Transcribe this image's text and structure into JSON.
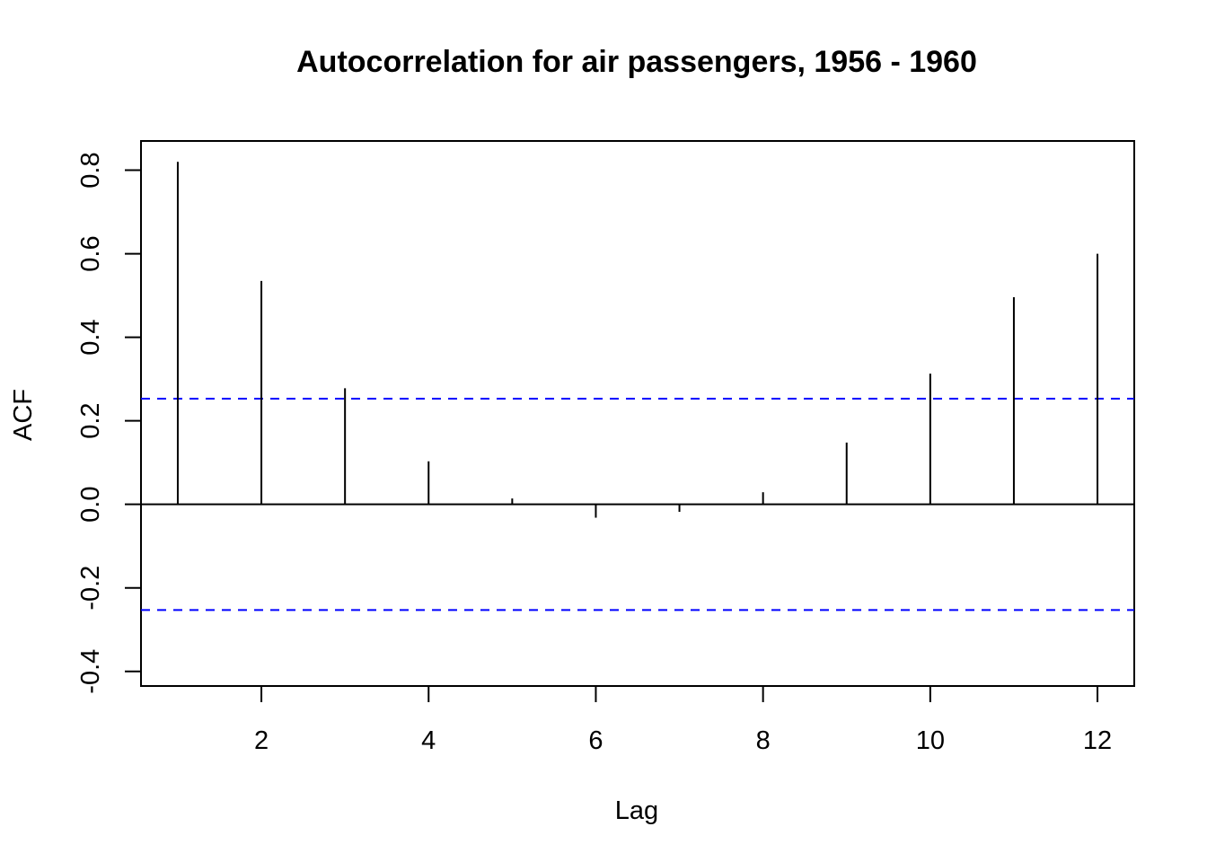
{
  "chart_data": {
    "type": "bar",
    "title": "Autocorrelation for air passengers, 1956 - 1960",
    "xlabel": "Lag",
    "ylabel": "ACF",
    "x": [
      1,
      2,
      3,
      4,
      5,
      6,
      7,
      8,
      9,
      10,
      11,
      12
    ],
    "values": [
      0.82,
      0.535,
      0.278,
      0.103,
      0.014,
      -0.032,
      -0.018,
      0.029,
      0.148,
      0.313,
      0.496,
      0.6
    ],
    "xlim": [
      0.56,
      12.44
    ],
    "ylim": [
      -0.435,
      0.87
    ],
    "x_ticks": [
      2,
      4,
      6,
      8,
      10,
      12
    ],
    "x_tick_labels": [
      "2",
      "4",
      "6",
      "8",
      "10",
      "12"
    ],
    "y_ticks": [
      -0.4,
      -0.2,
      0.0,
      0.2,
      0.4,
      0.6,
      0.8
    ],
    "y_tick_labels": [
      "-0.4",
      "-0.2",
      "0.0",
      "0.2",
      "0.4",
      "0.6",
      "0.8"
    ],
    "confidence_bounds": [
      0.253,
      -0.253
    ],
    "confidence_color": "#0000ff",
    "bar_color": "#000000",
    "grid": false,
    "legend": "none"
  }
}
